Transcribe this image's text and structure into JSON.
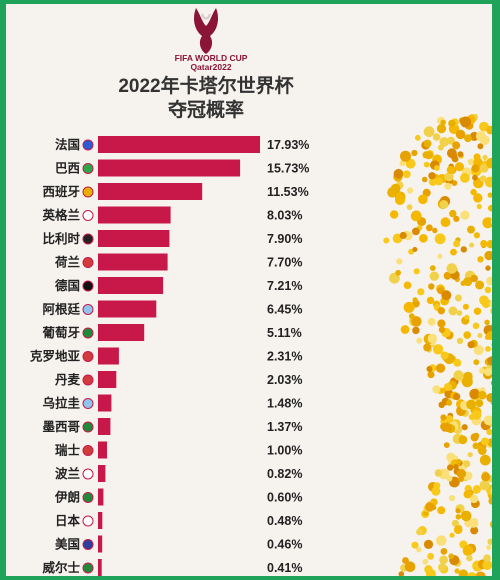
{
  "header": {
    "logo_line1": "FIFA WORLD CUP",
    "logo_line2": "Qatar2022",
    "title": "2022年卡塔尔世界杯",
    "subtitle": "夺冠概率"
  },
  "chart_data": {
    "type": "bar",
    "orientation": "horizontal",
    "title": "2022年卡塔尔世界杯 夺冠概率",
    "xlabel": "",
    "ylabel": "",
    "bar_color": "#c8184a",
    "categories": [
      "法国",
      "巴西",
      "西班牙",
      "英格兰",
      "比利时",
      "荷兰",
      "德国",
      "阿根廷",
      "葡萄牙",
      "克罗地亚",
      "丹麦",
      "乌拉圭",
      "墨西哥",
      "瑞士",
      "波兰",
      "伊朗",
      "日本",
      "美国",
      "威尔士"
    ],
    "values": [
      17.93,
      15.73,
      11.53,
      8.03,
      7.9,
      7.7,
      7.21,
      6.45,
      5.11,
      2.31,
      2.03,
      1.48,
      1.37,
      1.0,
      0.82,
      0.6,
      0.48,
      0.46,
      0.41
    ],
    "value_labels": [
      "17.93%",
      "15.73%",
      "11.53%",
      "8.03%",
      "7.90%",
      "7.70%",
      "7.21%",
      "6.45%",
      "5.11%",
      "2.31%",
      "2.03%",
      "1.48%",
      "1.37%",
      "1.00%",
      "0.82%",
      "0.60%",
      "0.48%",
      "0.46%",
      "0.41%"
    ],
    "flag_icons": [
      "france-flag-icon",
      "brazil-flag-icon",
      "spain-flag-icon",
      "england-flag-icon",
      "belgium-flag-icon",
      "netherlands-flag-icon",
      "germany-flag-icon",
      "argentina-flag-icon",
      "portugal-flag-icon",
      "croatia-flag-icon",
      "denmark-flag-icon",
      "uruguay-flag-icon",
      "mexico-flag-icon",
      "switzerland-flag-icon",
      "poland-flag-icon",
      "iran-flag-icon",
      "japan-flag-icon",
      "usa-flag-icon",
      "wales-flag-icon"
    ],
    "grid": false,
    "legend": "none"
  },
  "colors": {
    "background": "#f6f2ee",
    "border": "#1fa35a",
    "bar": "#c8184a",
    "title": "#333333",
    "brand": "#8a1538"
  }
}
